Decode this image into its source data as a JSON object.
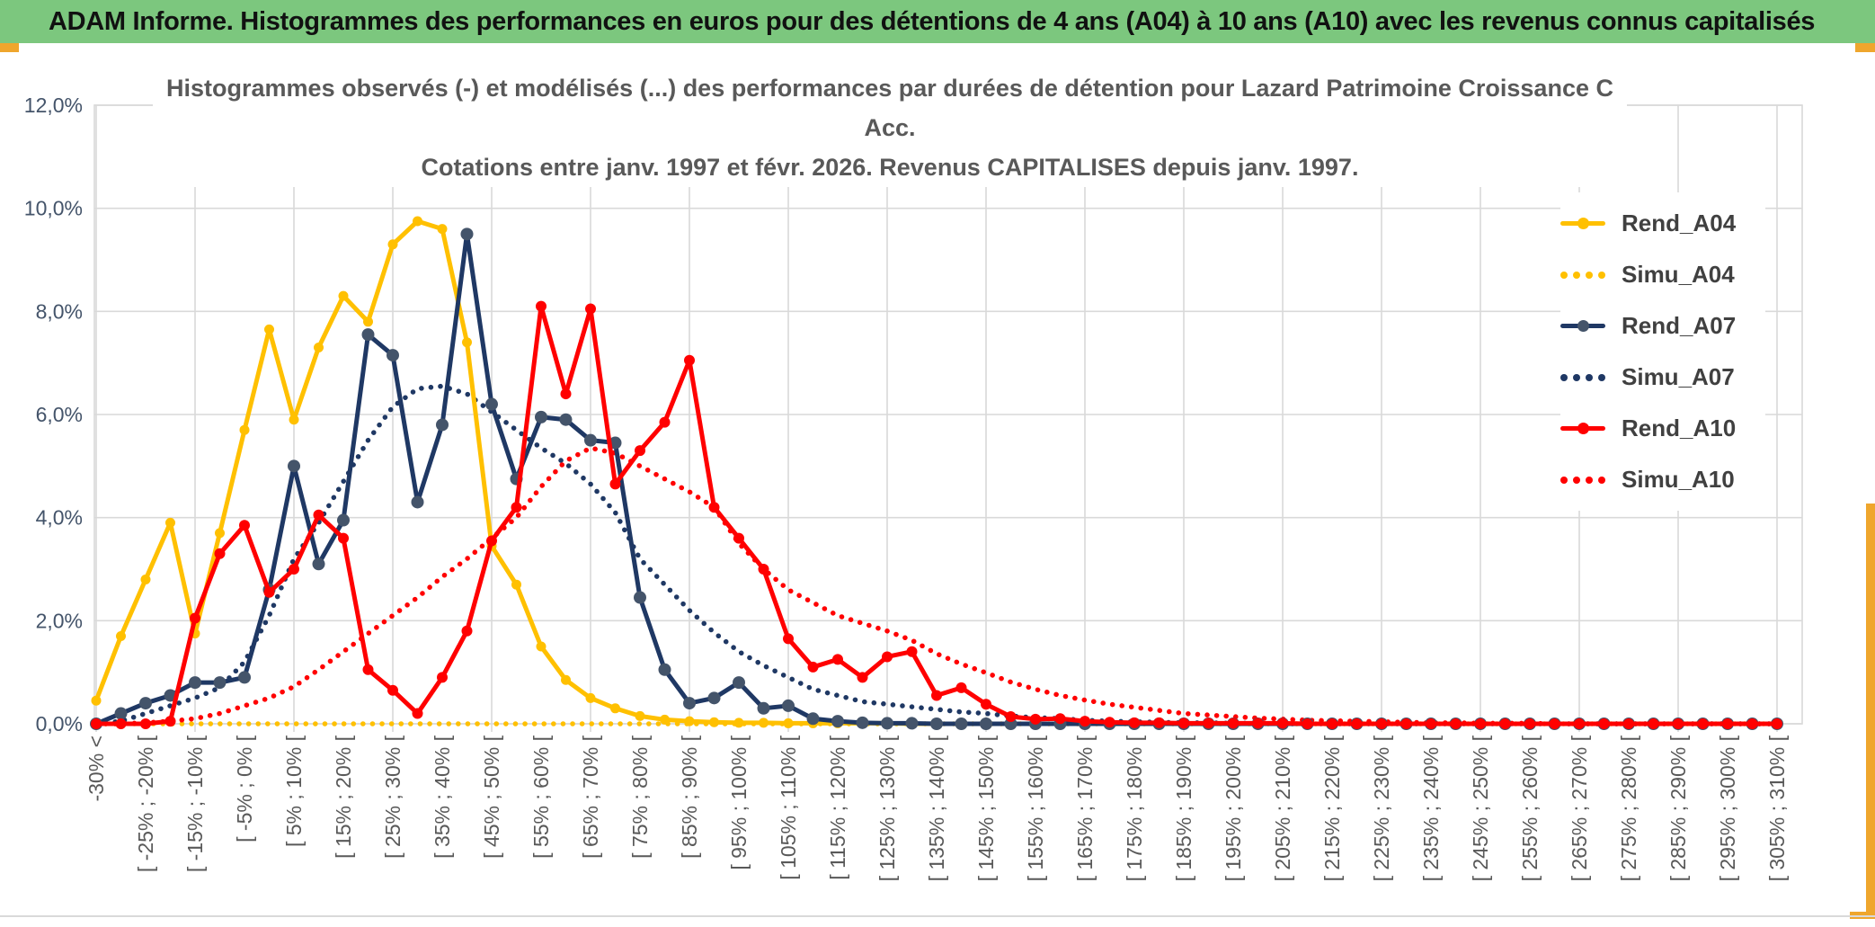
{
  "header": {
    "title": "ADAM Informe. Histogrammes des performances en euros pour des détentions de 4 ans (A04) à 10 ans (A10) avec les revenus connus capitalisés"
  },
  "chart_data": {
    "type": "line",
    "title_line1": "Histogrammes observés (-) et modélisés (...) des performances par durées de détention pour Lazard Patrimoine Croissance C Acc.",
    "title_line2": "Cotations entre janv. 1997 et févr. 2026. Revenus CAPITALISES depuis janv. 1997.",
    "ylabel": "",
    "xlabel": "",
    "ylim": [
      0,
      12
    ],
    "grid": true,
    "legend_position": "right-overlay",
    "y_ticks": [
      "12,0%",
      "10,0%",
      "8,0%",
      "6,0%",
      "4,0%",
      "2,0%",
      "0,0%"
    ],
    "y_tick_values": [
      12,
      10,
      8,
      6,
      4,
      2,
      0
    ],
    "n_bins": 69,
    "bin_width_pct": 5,
    "label_every_bins": 2,
    "gridline_every_bins": 4,
    "x_labels": [
      "-30% <",
      "[ -25% ; -20% [",
      "[ -15% ; -10% [",
      "[ -5% ; 0% [",
      "[ 5% ; 10% [",
      "[ 15% ; 20% [",
      "[ 25% ; 30% [",
      "[ 35% ; 40% [",
      "[ 45% ; 50% [",
      "[ 55% ; 60% [",
      "[ 65% ; 70% [",
      "[ 75% ; 80% [",
      "[ 85% ; 90% [",
      "[ 95% ; 100% [",
      "[ 105% ; 110% [",
      "[ 115% ; 120% [",
      "[ 125% ; 130% [",
      "[ 135% ; 140% [",
      "[ 145% ; 150% [",
      "[ 155% ; 160% [",
      "[ 165% ; 170% [",
      "[ 175% ; 180% [",
      "[ 185% ; 190% [",
      "[ 195% ; 200% [",
      "[ 205% ; 210% [",
      "[ 215% ; 220% [",
      "[ 225% ; 230% [",
      "[ 235% ; 240% [",
      "[ 245% ; 250% [",
      "[ 255% ; 260% [",
      "[ 265% ; 270% [",
      "[ 275% ; 280% [",
      "[ 285% ; 290% [",
      "[ 295% ; 300% [",
      "[ 305% ; 310% ["
    ],
    "legend": [
      {
        "label": "Rend_A04",
        "color": "#FFC000",
        "style": "solid"
      },
      {
        "label": "Simu_A04",
        "color": "#FFC000",
        "style": "dotted"
      },
      {
        "label": "Rend_A07",
        "color": "#1F3864",
        "style": "solid"
      },
      {
        "label": "Simu_A07",
        "color": "#1F3864",
        "style": "dotted"
      },
      {
        "label": "Rend_A10",
        "color": "#FF0000",
        "style": "solid"
      },
      {
        "label": "Simu_A10",
        "color": "#FF0000",
        "style": "dotted"
      }
    ],
    "series": [
      {
        "name": "Simu_A04",
        "style": "dotted",
        "color": "#FFC000",
        "values": [
          0,
          0,
          0,
          0,
          0,
          0,
          0,
          0,
          0,
          0,
          0,
          0,
          0,
          0,
          0,
          0,
          0,
          0,
          0,
          0,
          0,
          0,
          0,
          0,
          0,
          0,
          0,
          0,
          0,
          0,
          0,
          0,
          0,
          0,
          0,
          0,
          0,
          0,
          0,
          0,
          0,
          0,
          0,
          0,
          0,
          0,
          0,
          0,
          0,
          0,
          0,
          0,
          0,
          0,
          0,
          0,
          0,
          0,
          0,
          0,
          0,
          0,
          0,
          0,
          0,
          0,
          0,
          0,
          0
        ]
      },
      {
        "name": "Simu_A07",
        "style": "dotted",
        "color": "#1F3864",
        "values": [
          0,
          0.05,
          0.2,
          0.35,
          0.5,
          0.7,
          1.2,
          2.1,
          3.2,
          3.9,
          4.7,
          5.5,
          6.15,
          6.5,
          6.55,
          6.4,
          6.05,
          5.7,
          5.35,
          5.05,
          4.65,
          4.1,
          3.2,
          2.7,
          2.2,
          1.77,
          1.4,
          1.13,
          0.9,
          0.67,
          0.55,
          0.43,
          0.38,
          0.33,
          0.28,
          0.23,
          0.2,
          0.15,
          0.12,
          0.1,
          0.07,
          0.05,
          0.04,
          0.03,
          0.02,
          0.02,
          0.01,
          0.01,
          0,
          0,
          0,
          0,
          0,
          0,
          0,
          0,
          0,
          0,
          0,
          0,
          0,
          0,
          0,
          0,
          0,
          0,
          0,
          0,
          0
        ]
      },
      {
        "name": "Simu_A10",
        "style": "dotted",
        "color": "#FF0000",
        "values": [
          0,
          0,
          0.02,
          0.05,
          0.1,
          0.2,
          0.35,
          0.5,
          0.72,
          1.05,
          1.4,
          1.75,
          2.1,
          2.45,
          2.85,
          3.2,
          3.6,
          4.0,
          4.6,
          5.1,
          5.35,
          5.25,
          5.0,
          4.75,
          4.5,
          4.2,
          3.5,
          3.0,
          2.6,
          2.35,
          2.1,
          1.95,
          1.8,
          1.62,
          1.36,
          1.16,
          0.99,
          0.81,
          0.67,
          0.55,
          0.46,
          0.38,
          0.32,
          0.26,
          0.2,
          0.17,
          0.14,
          0.11,
          0.09,
          0.07,
          0.06,
          0.05,
          0.04,
          0.03,
          0.02,
          0.02,
          0.01,
          0.01,
          0.01,
          0,
          0,
          0,
          0,
          0,
          0,
          0,
          0,
          0,
          0
        ]
      },
      {
        "name": "Rend_A04",
        "style": "solid",
        "color": "#FFC000",
        "marker_color": "#FFC000",
        "marker_r": 5.5,
        "values": [
          0.45,
          1.7,
          2.8,
          3.9,
          1.75,
          3.7,
          5.7,
          7.65,
          5.9,
          7.3,
          8.3,
          7.8,
          9.3,
          9.75,
          9.6,
          7.4,
          3.45,
          2.7,
          1.5,
          0.85,
          0.5,
          0.3,
          0.15,
          0.08,
          0.05,
          0.03,
          0.02,
          0.02,
          0.01,
          0.01,
          0.01,
          0.01,
          0.01,
          0,
          0,
          0,
          0,
          0,
          0,
          0,
          0,
          0,
          0,
          0,
          0,
          0,
          0,
          0,
          0,
          0,
          0,
          0,
          0,
          0,
          0,
          0,
          0,
          0,
          0,
          0,
          0,
          0,
          0,
          0,
          0,
          0,
          0,
          0,
          0
        ]
      },
      {
        "name": "Rend_A07",
        "style": "solid",
        "color": "#1F3864",
        "marker_color": "#44546A",
        "marker_r": 7,
        "values": [
          0,
          0.2,
          0.4,
          0.55,
          0.8,
          0.8,
          0.9,
          2.6,
          5.0,
          3.1,
          3.95,
          7.55,
          7.15,
          4.3,
          5.8,
          9.5,
          6.2,
          4.75,
          5.95,
          5.9,
          5.5,
          5.45,
          2.45,
          1.05,
          0.4,
          0.5,
          0.8,
          0.3,
          0.35,
          0.1,
          0.05,
          0.02,
          0.01,
          0.01,
          0,
          0,
          0,
          0,
          0,
          0,
          0,
          0,
          0,
          0,
          0,
          0,
          0,
          0,
          0,
          0,
          0,
          0,
          0,
          0,
          0,
          0,
          0,
          0,
          0,
          0,
          0,
          0,
          0,
          0,
          0,
          0,
          0,
          0,
          0
        ]
      },
      {
        "name": "Rend_A10",
        "style": "solid",
        "color": "#FF0000",
        "marker_color": "#FF0000",
        "marker_r": 6,
        "values": [
          0,
          0,
          0,
          0.05,
          2.05,
          3.3,
          3.85,
          2.55,
          3.0,
          4.05,
          3.6,
          1.05,
          0.65,
          0.2,
          0.9,
          1.8,
          3.55,
          4.2,
          8.1,
          6.4,
          8.05,
          4.65,
          5.3,
          5.85,
          7.05,
          4.2,
          3.6,
          3.0,
          1.65,
          1.1,
          1.25,
          0.9,
          1.3,
          1.4,
          0.55,
          0.7,
          0.38,
          0.14,
          0.09,
          0.1,
          0.05,
          0.03,
          0.02,
          0.02,
          0.01,
          0.01,
          0.01,
          0.01,
          0.01,
          0,
          0,
          0,
          0,
          0,
          0,
          0,
          0,
          0,
          0,
          0,
          0,
          0,
          0,
          0,
          0,
          0,
          0,
          0,
          0
        ]
      }
    ]
  },
  "colors": {
    "header_bg": "#7CC77E",
    "gold_accent": "#EFA62D",
    "gridline": "#D9D9D9",
    "title_text": "#595959",
    "y_tick_text": "#44546A",
    "x_tick_text": "#595959",
    "legend_text": "#404040"
  }
}
